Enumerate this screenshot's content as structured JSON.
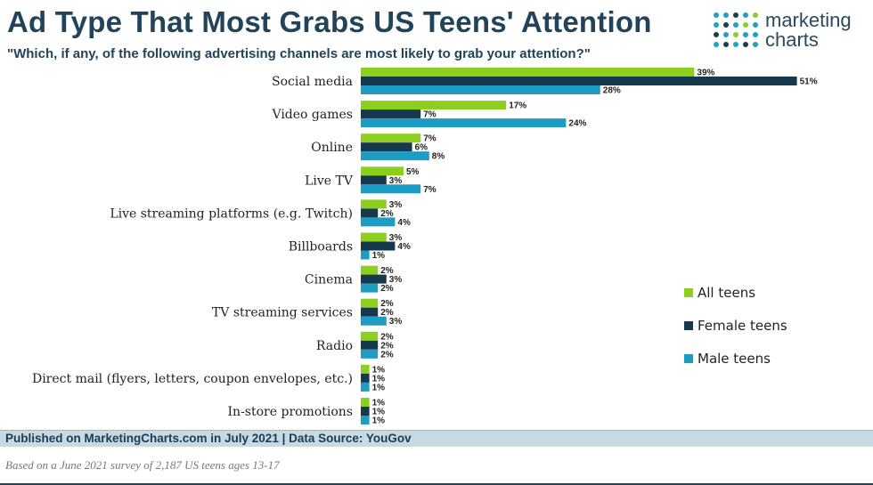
{
  "header": {
    "title": "Ad Type That Most Grabs US Teens' Attention",
    "subtitle": "\"Which, if any, of the following advertising channels are most likely to grab your attention?\""
  },
  "logo": {
    "line1": "marketing",
    "line2": "charts",
    "dot_colors": [
      "#1fa0c6",
      "#1a3d50",
      "#8ccf2b"
    ]
  },
  "chart_data": {
    "type": "bar",
    "orientation": "horizontal",
    "title": "Ad Type That Most Grabs US Teens' Attention",
    "subtitle": "\"Which, if any, of the following advertising channels are most likely to grab your attention?\"",
    "categories": [
      "Social media",
      "Video games",
      "Online",
      "Live TV",
      "Live streaming platforms (e.g. Twitch)",
      "Billboards",
      "Cinema",
      "TV streaming services",
      "Radio",
      "Direct mail (flyers, letters, coupon envelopes, etc.)",
      "In-store promotions"
    ],
    "series": [
      {
        "name": "All teens",
        "color": "#8ccf1e",
        "values": [
          39,
          17,
          7,
          5,
          3,
          3,
          2,
          2,
          2,
          1,
          1
        ]
      },
      {
        "name": "Female teens",
        "color": "#17394d",
        "values": [
          51,
          7,
          6,
          3,
          2,
          4,
          3,
          2,
          2,
          1,
          1
        ]
      },
      {
        "name": "Male teens",
        "color": "#1d9cc4",
        "values": [
          28,
          24,
          8,
          7,
          4,
          1,
          2,
          3,
          2,
          1,
          1
        ]
      }
    ],
    "value_suffix": "%",
    "legend_position": "right",
    "grid": false
  },
  "footer": {
    "source": "Published on MarketingCharts.com in July 2021 | Data Source: YouGov",
    "note": "Based on a June 2021 survey of 2,187 US teens ages 13-17"
  }
}
